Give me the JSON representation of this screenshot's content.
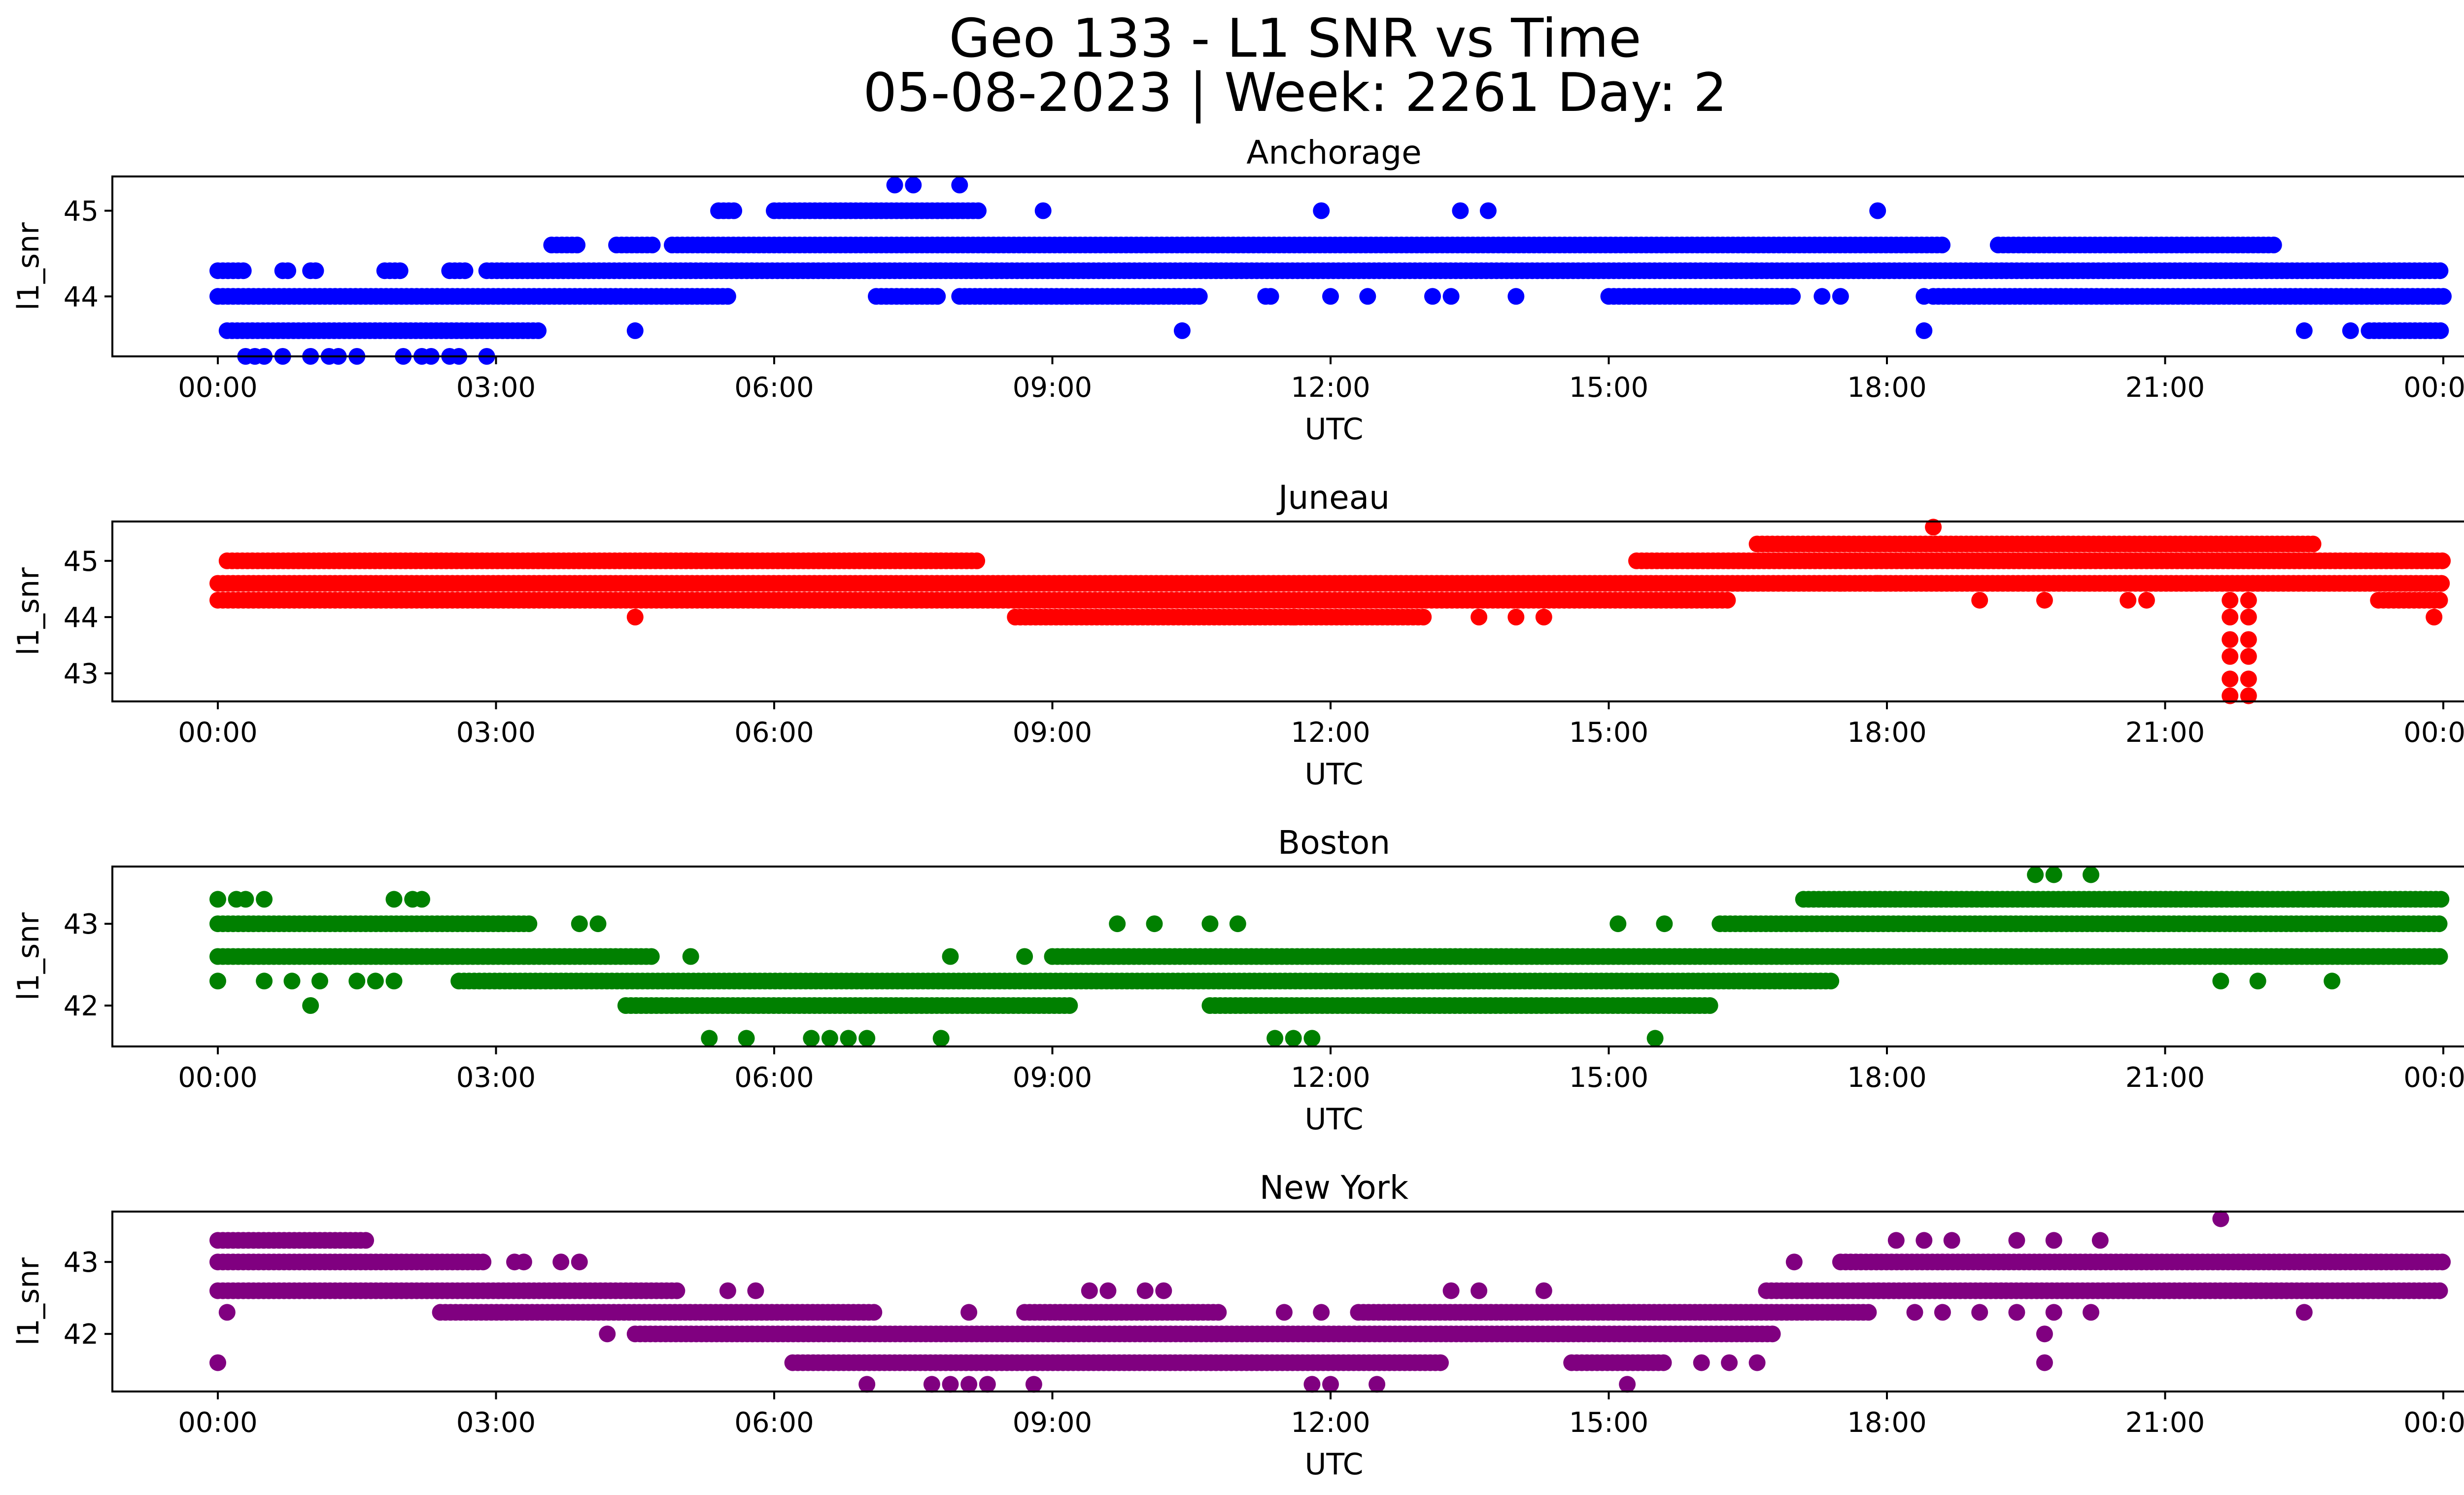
{
  "figure": {
    "title_line1": "Geo 133 - L1 SNR vs Time",
    "title_line2": "05-08-2023 | Week: 2261 Day: 2"
  },
  "chart_data": [
    {
      "type": "scatter",
      "title": "Anchorage",
      "xlabel": "UTC",
      "ylabel": "l1_snr",
      "color": "#0000ff",
      "xlim": [
        0,
        24
      ],
      "ylim": [
        43.3,
        45.4
      ],
      "xticks": [
        "00:00",
        "03:00",
        "06:00",
        "09:00",
        "12:00",
        "15:00",
        "18:00",
        "21:00",
        "00:00"
      ],
      "yticks": [
        44,
        45
      ],
      "bands": [
        {
          "y": 44.3,
          "segments": [
            [
              0.0,
              0.3
            ],
            [
              0.7,
              0.8
            ],
            [
              1.0,
              1.1
            ],
            [
              1.8,
              2.0
            ],
            [
              2.5,
              2.7
            ],
            [
              2.9,
              24.0
            ]
          ]
        },
        {
          "y": 44.0,
          "segments": [
            [
              0.0,
              5.5
            ],
            [
              7.1,
              7.8
            ],
            [
              8.0,
              10.6
            ],
            [
              11.3,
              11.4
            ],
            [
              15.0,
              17.0
            ],
            [
              18.5,
              24.0
            ]
          ]
        },
        {
          "y": 43.6,
          "segments": [
            [
              0.1,
              3.5
            ],
            [
              23.2,
              24.0
            ]
          ]
        },
        {
          "y": 44.6,
          "segments": [
            [
              3.6,
              3.9
            ],
            [
              4.3,
              4.7
            ],
            [
              4.9,
              18.6
            ],
            [
              19.2,
              22.2
            ]
          ]
        },
        {
          "y": 45.0,
          "segments": [
            [
              5.4,
              5.6
            ],
            [
              6.0,
              8.2
            ]
          ]
        }
      ],
      "points": [
        [
          0.3,
          43.3
        ],
        [
          0.4,
          43.3
        ],
        [
          0.5,
          43.3
        ],
        [
          0.7,
          43.3
        ],
        [
          1.0,
          43.3
        ],
        [
          1.2,
          43.3
        ],
        [
          1.3,
          43.3
        ],
        [
          1.5,
          43.3
        ],
        [
          2.0,
          43.3
        ],
        [
          2.2,
          43.3
        ],
        [
          2.3,
          43.3
        ],
        [
          2.5,
          43.3
        ],
        [
          2.6,
          43.3
        ],
        [
          2.9,
          43.3
        ],
        [
          7.3,
          45.3
        ],
        [
          7.5,
          45.3
        ],
        [
          8.0,
          45.3
        ],
        [
          8.9,
          45.0
        ],
        [
          11.9,
          45.0
        ],
        [
          13.4,
          45.0
        ],
        [
          13.7,
          45.0
        ],
        [
          17.9,
          45.0
        ],
        [
          4.5,
          43.6
        ],
        [
          10.4,
          43.6
        ],
        [
          18.4,
          43.6
        ],
        [
          22.5,
          43.6
        ],
        [
          23.0,
          43.6
        ],
        [
          12.0,
          44.0
        ],
        [
          12.4,
          44.0
        ],
        [
          13.1,
          44.0
        ],
        [
          13.3,
          44.0
        ],
        [
          14.0,
          44.0
        ],
        [
          17.3,
          44.0
        ],
        [
          17.5,
          44.0
        ],
        [
          18.4,
          44.0
        ]
      ]
    },
    {
      "type": "scatter",
      "title": "Juneau",
      "xlabel": "UTC",
      "ylabel": "l1_snr",
      "color": "#ff0000",
      "xlim": [
        0,
        24
      ],
      "ylim": [
        42.5,
        45.7
      ],
      "xticks": [
        "00:00",
        "03:00",
        "06:00",
        "09:00",
        "12:00",
        "15:00",
        "18:00",
        "21:00",
        "00:00"
      ],
      "yticks": [
        43,
        44,
        45
      ],
      "bands": [
        {
          "y": 44.6,
          "segments": [
            [
              0.0,
              24.0
            ]
          ]
        },
        {
          "y": 44.3,
          "segments": [
            [
              0.0,
              16.3
            ],
            [
              23.3,
              24.0
            ]
          ]
        },
        {
          "y": 45.0,
          "segments": [
            [
              0.1,
              8.2
            ],
            [
              15.3,
              24.0
            ]
          ]
        },
        {
          "y": 44.0,
          "segments": [
            [
              8.6,
              13.0
            ]
          ]
        },
        {
          "y": 45.3,
          "segments": [
            [
              16.6,
              22.6
            ]
          ]
        }
      ],
      "points": [
        [
          4.5,
          44.0
        ],
        [
          13.6,
          44.0
        ],
        [
          14.0,
          44.0
        ],
        [
          14.3,
          44.0
        ],
        [
          11.6,
          44.0
        ],
        [
          17.5,
          44.6
        ],
        [
          17.9,
          44.6
        ],
        [
          18.5,
          45.6
        ],
        [
          19.0,
          44.3
        ],
        [
          19.7,
          44.3
        ],
        [
          20.6,
          44.3
        ],
        [
          20.8,
          44.3
        ],
        [
          23.9,
          44.0
        ],
        [
          21.7,
          44.3
        ],
        [
          21.7,
          44.0
        ],
        [
          21.7,
          43.6
        ],
        [
          21.7,
          43.3
        ],
        [
          21.7,
          42.9
        ],
        [
          21.7,
          42.6
        ],
        [
          21.9,
          44.3
        ],
        [
          21.9,
          44.0
        ],
        [
          21.9,
          43.6
        ],
        [
          21.9,
          43.3
        ],
        [
          21.9,
          42.9
        ],
        [
          21.9,
          42.6
        ]
      ]
    },
    {
      "type": "scatter",
      "title": "Boston",
      "xlabel": "UTC",
      "ylabel": "l1_snr",
      "color": "#008000",
      "xlim": [
        0,
        24
      ],
      "ylim": [
        41.5,
        43.7
      ],
      "xticks": [
        "00:00",
        "03:00",
        "06:00",
        "09:00",
        "12:00",
        "15:00",
        "18:00",
        "21:00",
        "00:00"
      ],
      "yticks": [
        42,
        43
      ],
      "bands": [
        {
          "y": 43.0,
          "segments": [
            [
              0.0,
              3.4
            ],
            [
              16.2,
              24.0
            ]
          ]
        },
        {
          "y": 42.6,
          "segments": [
            [
              0.0,
              4.7
            ],
            [
              9.0,
              24.0
            ]
          ]
        },
        {
          "y": 42.3,
          "segments": [
            [
              2.6,
              17.4
            ]
          ]
        },
        {
          "y": 42.0,
          "segments": [
            [
              4.4,
              9.2
            ],
            [
              10.7,
              16.1
            ]
          ]
        },
        {
          "y": 43.3,
          "segments": [
            [
              17.1,
              24.0
            ]
          ]
        }
      ],
      "points": [
        [
          0.0,
          43.3
        ],
        [
          0.2,
          43.3
        ],
        [
          0.3,
          43.3
        ],
        [
          0.5,
          43.3
        ],
        [
          1.9,
          43.3
        ],
        [
          2.1,
          43.3
        ],
        [
          2.2,
          43.3
        ],
        [
          3.9,
          43.0
        ],
        [
          4.1,
          43.0
        ],
        [
          9.7,
          43.0
        ],
        [
          10.1,
          43.0
        ],
        [
          10.7,
          43.0
        ],
        [
          11.0,
          43.0
        ],
        [
          15.1,
          43.0
        ],
        [
          15.6,
          43.0
        ],
        [
          0.0,
          42.3
        ],
        [
          0.5,
          42.3
        ],
        [
          0.8,
          42.3
        ],
        [
          1.1,
          42.3
        ],
        [
          1.5,
          42.3
        ],
        [
          1.7,
          42.3
        ],
        [
          1.9,
          42.3
        ],
        [
          21.6,
          42.3
        ],
        [
          22.0,
          42.3
        ],
        [
          22.8,
          42.3
        ],
        [
          1.0,
          42.0
        ],
        [
          5.1,
          42.6
        ],
        [
          7.9,
          42.6
        ],
        [
          8.7,
          42.6
        ],
        [
          5.3,
          41.6
        ],
        [
          5.7,
          41.6
        ],
        [
          6.4,
          41.6
        ],
        [
          6.6,
          41.6
        ],
        [
          6.8,
          41.6
        ],
        [
          7.0,
          41.6
        ],
        [
          7.8,
          41.6
        ],
        [
          11.4,
          41.6
        ],
        [
          11.6,
          41.6
        ],
        [
          11.8,
          41.6
        ],
        [
          15.5,
          41.6
        ],
        [
          19.6,
          43.6
        ],
        [
          19.8,
          43.6
        ],
        [
          20.2,
          43.6
        ]
      ]
    },
    {
      "type": "scatter",
      "title": "New York",
      "xlabel": "UTC",
      "ylabel": "l1_snr",
      "color": "#800080",
      "xlim": [
        0,
        24
      ],
      "ylim": [
        41.2,
        43.7
      ],
      "xticks": [
        "00:00",
        "03:00",
        "06:00",
        "09:00",
        "12:00",
        "15:00",
        "18:00",
        "21:00",
        "00:00"
      ],
      "yticks": [
        42,
        43
      ],
      "bands": [
        {
          "y": 43.0,
          "segments": [
            [
              0.0,
              2.9
            ],
            [
              17.5,
              24.0
            ]
          ]
        },
        {
          "y": 42.6,
          "segments": [
            [
              0.0,
              5.0
            ],
            [
              16.7,
              24.0
            ]
          ]
        },
        {
          "y": 43.3,
          "segments": [
            [
              0.0,
              1.6
            ]
          ]
        },
        {
          "y": 42.3,
          "segments": [
            [
              2.4,
              7.1
            ],
            [
              8.7,
              10.8
            ],
            [
              12.3,
              17.8
            ]
          ]
        },
        {
          "y": 42.0,
          "segments": [
            [
              4.5,
              16.8
            ]
          ]
        },
        {
          "y": 41.6,
          "segments": [
            [
              6.2,
              13.2
            ],
            [
              14.6,
              15.6
            ]
          ]
        }
      ],
      "points": [
        [
          0.0,
          41.6
        ],
        [
          0.1,
          42.3
        ],
        [
          3.2,
          43.0
        ],
        [
          3.3,
          43.0
        ],
        [
          3.7,
          43.0
        ],
        [
          3.9,
          43.0
        ],
        [
          4.2,
          42.0
        ],
        [
          5.5,
          42.6
        ],
        [
          5.8,
          42.6
        ],
        [
          7.0,
          41.3
        ],
        [
          7.7,
          41.3
        ],
        [
          7.9,
          41.3
        ],
        [
          8.1,
          41.3
        ],
        [
          8.3,
          41.3
        ],
        [
          8.8,
          41.3
        ],
        [
          11.8,
          41.3
        ],
        [
          12.0,
          41.3
        ],
        [
          12.5,
          41.3
        ],
        [
          15.2,
          41.3
        ],
        [
          8.1,
          42.3
        ],
        [
          11.5,
          42.3
        ],
        [
          11.9,
          42.3
        ],
        [
          9.4,
          42.6
        ],
        [
          9.6,
          42.6
        ],
        [
          10.0,
          42.6
        ],
        [
          10.2,
          42.6
        ],
        [
          13.3,
          42.6
        ],
        [
          13.6,
          42.6
        ],
        [
          14.3,
          42.6
        ],
        [
          16.0,
          41.6
        ],
        [
          16.3,
          41.6
        ],
        [
          16.6,
          41.6
        ],
        [
          17.0,
          43.0
        ],
        [
          18.1,
          43.3
        ],
        [
          18.4,
          43.3
        ],
        [
          18.7,
          43.3
        ],
        [
          19.4,
          43.3
        ],
        [
          19.8,
          43.3
        ],
        [
          20.3,
          43.3
        ],
        [
          21.6,
          43.6
        ],
        [
          18.3,
          42.3
        ],
        [
          18.6,
          42.3
        ],
        [
          19.0,
          42.3
        ],
        [
          19.4,
          42.3
        ],
        [
          19.8,
          42.3
        ],
        [
          20.2,
          42.3
        ],
        [
          22.5,
          42.3
        ],
        [
          19.7,
          42.0
        ],
        [
          19.7,
          41.6
        ]
      ]
    }
  ]
}
